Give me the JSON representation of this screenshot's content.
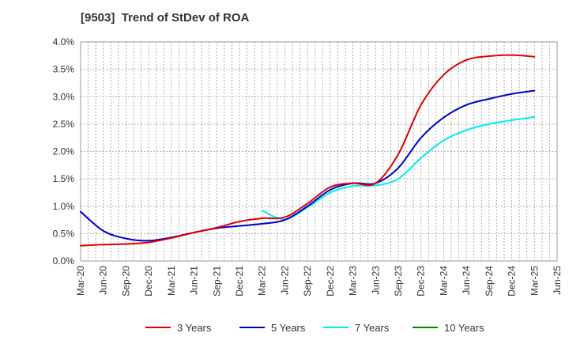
{
  "chart_data": {
    "type": "line",
    "title": "[9503]  Trend of StDev of ROA",
    "xlabel": "",
    "ylabel": "",
    "x": [
      "Mar-20",
      "Jun-20",
      "Sep-20",
      "Dec-20",
      "Mar-21",
      "Jun-21",
      "Sep-21",
      "Dec-21",
      "Mar-22",
      "Jun-22",
      "Sep-22",
      "Dec-22",
      "Mar-23",
      "Jun-23",
      "Sep-23",
      "Dec-23",
      "Mar-24",
      "Jun-24",
      "Sep-24",
      "Dec-24",
      "Mar-25",
      "Jun-25"
    ],
    "x_ticks": [
      "Mar-20",
      "Jun-20",
      "Sep-20",
      "Dec-20",
      "Mar-21",
      "Jun-21",
      "Sep-21",
      "Dec-21",
      "Mar-22",
      "Jun-22",
      "Sep-22",
      "Dec-22",
      "Mar-23",
      "Jun-23",
      "Sep-23",
      "Dec-23",
      "Mar-24",
      "Jun-24",
      "Sep-24",
      "Dec-24",
      "Mar-25",
      "Jun-25"
    ],
    "y_ticks": [
      "0.0%",
      "0.5%",
      "1.0%",
      "1.5%",
      "2.0%",
      "2.5%",
      "3.0%",
      "3.5%",
      "4.0%"
    ],
    "ylim": [
      0,
      4.0
    ],
    "grid": true,
    "legend_position": "bottom",
    "series": [
      {
        "name": "3 Years",
        "color": "#dd0000",
        "values": [
          0.28,
          0.3,
          0.31,
          0.34,
          0.42,
          0.52,
          0.61,
          0.72,
          0.78,
          0.8,
          1.05,
          1.35,
          1.42,
          1.42,
          1.95,
          2.85,
          3.4,
          3.67,
          3.74,
          3.76,
          3.73,
          null
        ]
      },
      {
        "name": "5 Years",
        "color": "#0000cc",
        "values": [
          0.9,
          0.55,
          0.41,
          0.37,
          0.43,
          0.52,
          0.6,
          0.64,
          0.68,
          0.75,
          1.0,
          1.3,
          1.42,
          1.42,
          1.7,
          2.25,
          2.62,
          2.85,
          2.96,
          3.05,
          3.11,
          null
        ]
      },
      {
        "name": "7 Years",
        "color": "#00eeee",
        "values": [
          null,
          null,
          null,
          null,
          null,
          null,
          null,
          null,
          0.92,
          0.76,
          0.98,
          1.25,
          1.37,
          1.38,
          1.5,
          1.88,
          2.2,
          2.39,
          2.5,
          2.57,
          2.63,
          null
        ]
      },
      {
        "name": "10 Years",
        "color": "#008800",
        "values": [
          null,
          null,
          null,
          null,
          null,
          null,
          null,
          null,
          null,
          null,
          null,
          null,
          null,
          null,
          null,
          null,
          null,
          null,
          null,
          null,
          null,
          null
        ]
      }
    ]
  }
}
